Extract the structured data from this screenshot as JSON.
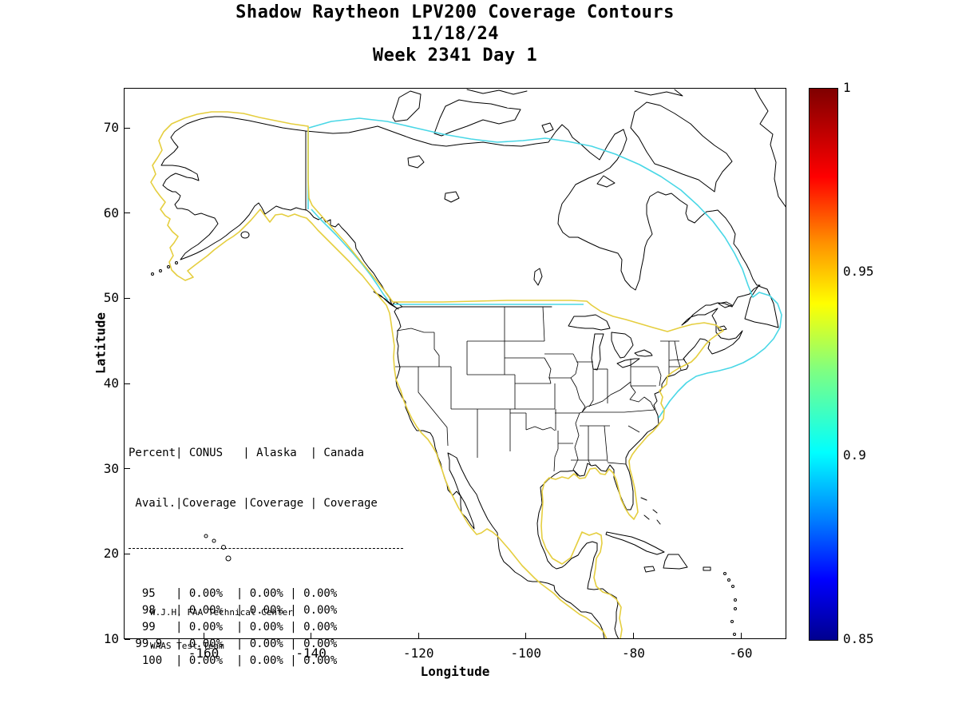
{
  "title": {
    "line1": "Shadow Raytheon LPV200 Coverage Contours",
    "line2": "11/18/24",
    "line3": "Week 2341 Day 1"
  },
  "axes": {
    "x_label": "Longitude",
    "y_label": "Latitude",
    "x_ticks": [
      -160,
      -140,
      -120,
      -100,
      -80,
      -60
    ],
    "y_ticks": [
      70,
      60,
      50,
      40,
      30,
      20,
      10
    ],
    "x_range": [
      -174.9,
      -51.6
    ],
    "y_range": [
      10,
      74.7
    ]
  },
  "colorbar": {
    "min": 0.85,
    "max": 1,
    "ticks": [
      "1",
      "0.95",
      "0.9",
      "0.85"
    ],
    "colormap": "jet"
  },
  "coverage_table": {
    "header_line1": "Percent| CONUS   | Alaska  | Canada",
    "header_line2": " Avail.|Coverage |Coverage | Coverage",
    "rows": [
      {
        "avail": "95",
        "conus": "0.00%",
        "alaska": "0.00%",
        "canada": "0.00%"
      },
      {
        "avail": "98",
        "conus": "0.00%",
        "alaska": "0.00%",
        "canada": "0.00%"
      },
      {
        "avail": "99",
        "conus": "0.00%",
        "alaska": "0.00%",
        "canada": "0.00%"
      },
      {
        "avail": "99.9",
        "conus": "0.00%",
        "alaska": "0.00%",
        "canada": "0.00%"
      },
      {
        "avail": "100",
        "conus": "0.00%",
        "alaska": "0.00%",
        "canada": "0.00%"
      }
    ]
  },
  "annotation": {
    "line1": "W.J.H. FAA Technical Center",
    "line2": "WAAS Test Team"
  },
  "chart_data": {
    "type": "contour-map",
    "title": "Shadow Raytheon LPV200 Coverage Contours",
    "date": "11/18/24",
    "week_day": "Week 2341 Day 1",
    "xlabel": "Longitude",
    "ylabel": "Latitude",
    "xlim": [
      -174.9,
      -51.6
    ],
    "ylim": [
      10,
      74.7
    ],
    "colorbar_range": [
      0.85,
      1
    ],
    "colorbar_ticks": [
      1,
      0.95,
      0.9,
      0.85
    ],
    "contour_levels": [
      {
        "level": 0.95,
        "color": "#e5ce3f",
        "region": "around Alaska, CONUS, Mexico and southern Canada coasts"
      },
      {
        "level": 0.9,
        "color": "#49d7e6",
        "region": "outer envelope across northern Canada and Atlantic Canada"
      }
    ],
    "coverage_table": {
      "columns": [
        "Percent Avail.",
        "CONUS Coverage",
        "Alaska Coverage",
        "Canada Coverage"
      ],
      "rows": [
        [
          "95",
          "0.00%",
          "0.00%",
          "0.00%"
        ],
        [
          "98",
          "0.00%",
          "0.00%",
          "0.00%"
        ],
        [
          "99",
          "0.00%",
          "0.00%",
          "0.00%"
        ],
        [
          "99.9",
          "0.00%",
          "0.00%",
          "0.00%"
        ],
        [
          "100",
          "0.00%",
          "0.00%",
          "0.00%"
        ]
      ]
    }
  }
}
